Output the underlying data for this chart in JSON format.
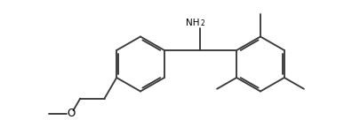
{
  "bg": "#ffffff",
  "lc": "#3a3a3a",
  "lw": 1.35,
  "tc": "#000000",
  "fig_w": 3.87,
  "fig_h": 1.36,
  "dpi": 100
}
